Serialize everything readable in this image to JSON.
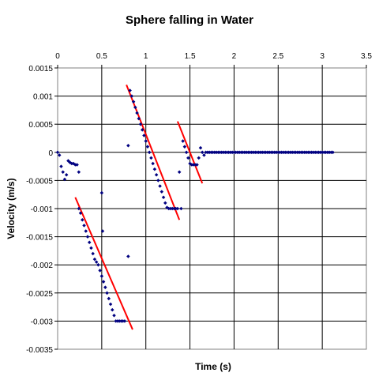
{
  "chart_data": {
    "type": "scatter",
    "title": "Sphere falling in Water",
    "xlabel": "Time (s)",
    "ylabel": "Velocity (m/s)",
    "xlim": [
      0,
      3.5
    ],
    "ylim": [
      -0.0035,
      0.0015
    ],
    "x_ticks": [
      "0",
      "0.5",
      "1",
      "1.5",
      "2",
      "2.5",
      "3",
      "3.5"
    ],
    "x_tick_values": [
      0,
      0.5,
      1,
      1.5,
      2,
      2.5,
      3,
      3.5
    ],
    "y_ticks": [
      "0.0015",
      "0.001",
      "0.0005",
      "0",
      "-0.0005",
      "-0.001",
      "-0.0015",
      "-0.002",
      "-0.0025",
      "-0.003",
      "-0.0035"
    ],
    "y_tick_values": [
      0.0015,
      0.001,
      0.0005,
      0,
      -0.0005,
      -0.001,
      -0.0015,
      -0.002,
      -0.0025,
      -0.003,
      -0.0035
    ],
    "x_axis_position": "top",
    "grid": true,
    "legend": "none",
    "point_color": "#000080",
    "fit_color": "#ff0000",
    "series": [
      {
        "x": [
          0.0,
          0.02,
          0.04,
          0.06,
          0.08,
          0.1,
          0.12,
          0.14,
          0.16,
          0.18,
          0.2,
          0.22,
          0.24,
          0.24,
          0.26,
          0.28,
          0.3,
          0.32,
          0.34,
          0.36,
          0.38,
          0.4,
          0.42,
          0.44,
          0.46,
          0.48,
          0.5,
          0.52,
          0.54,
          0.56,
          0.58,
          0.6,
          0.62,
          0.64,
          0.66,
          0.68,
          0.7,
          0.72,
          0.74,
          0.76,
          0.5,
          0.51,
          0.8,
          0.8,
          0.82,
          0.84,
          0.86,
          0.88,
          0.9,
          0.92,
          0.94,
          0.96,
          0.98,
          1.0,
          1.02,
          1.04,
          1.06,
          1.08,
          1.1,
          1.12,
          1.14,
          1.16,
          1.18,
          1.2,
          1.22,
          1.24,
          1.26,
          1.28,
          1.3,
          1.32,
          1.34,
          1.36,
          1.38,
          1.4,
          1.42,
          1.44,
          1.46,
          1.48,
          1.5,
          1.52,
          1.54,
          1.56,
          1.58,
          1.6,
          1.62,
          1.64,
          1.66,
          1.68,
          1.7,
          1.72,
          1.74,
          1.76,
          1.78,
          1.8,
          1.82,
          1.84,
          1.86,
          1.88,
          1.9,
          1.92,
          1.94,
          1.96,
          1.98,
          2.0,
          2.02,
          2.04,
          2.06,
          2.08,
          2.1,
          2.12,
          2.14,
          2.16,
          2.18,
          2.2,
          2.22,
          2.24,
          2.26,
          2.28,
          2.3,
          2.32,
          2.34,
          2.36,
          2.38,
          2.4,
          2.42,
          2.44,
          2.46,
          2.48,
          2.5,
          2.52,
          2.54,
          2.56,
          2.58,
          2.6,
          2.62,
          2.64,
          2.66,
          2.68,
          2.7,
          2.72,
          2.74,
          2.76,
          2.78,
          2.8,
          2.82,
          2.84,
          2.86,
          2.88,
          2.9,
          2.92,
          2.94,
          2.96,
          2.98,
          3.0,
          3.02,
          3.04,
          3.06,
          3.08,
          3.1,
          3.12
        ],
        "y": [
          0.0,
          -5e-05,
          -0.00025,
          -0.00035,
          -0.00048,
          -0.0004,
          -0.00015,
          -0.00018,
          -0.0002,
          -0.0002,
          -0.00022,
          -0.00022,
          -0.00035,
          -0.001,
          -0.00108,
          -0.0012,
          -0.0013,
          -0.0014,
          -0.0015,
          -0.0016,
          -0.0017,
          -0.0018,
          -0.0019,
          -0.00195,
          -0.002,
          -0.0021,
          -0.0022,
          -0.0023,
          -0.0024,
          -0.0025,
          -0.0026,
          -0.0027,
          -0.0028,
          -0.0029,
          -0.003,
          -0.003,
          -0.003,
          -0.003,
          -0.003,
          -0.003,
          -0.00072,
          -0.0014,
          -0.00185,
          0.00012,
          0.0011,
          0.001,
          0.0009,
          0.0008,
          0.0007,
          0.0006,
          0.0005,
          0.0004,
          0.0003,
          0.0002,
          0.0001,
          0.0,
          -0.0001,
          -0.0002,
          -0.0003,
          -0.0004,
          -0.0005,
          -0.0006,
          -0.0007,
          -0.0008,
          -0.0009,
          -0.00098,
          -0.001,
          -0.001,
          -0.001,
          -0.001,
          -0.001,
          -0.001,
          -0.00035,
          -0.001,
          0.0002,
          0.0001,
          0.0,
          -0.0001,
          -0.0002,
          -0.00022,
          -0.00022,
          -0.00022,
          -0.00022,
          -0.0001,
          8e-05,
          0.0,
          -5e-05,
          0.0,
          0.0,
          0,
          0,
          0,
          0,
          0,
          0,
          0,
          0,
          0,
          0,
          0,
          0,
          0,
          0,
          0,
          0,
          0,
          0,
          0,
          0,
          0,
          0,
          0,
          0,
          0,
          0,
          0,
          0,
          0,
          0,
          0,
          0,
          0,
          0,
          0,
          0,
          0,
          0,
          0,
          0,
          0,
          0,
          0,
          0,
          0,
          0,
          0,
          0,
          0,
          0,
          0,
          0,
          0,
          0,
          0,
          0,
          0,
          0,
          0,
          0,
          0,
          0,
          0,
          0,
          0,
          0,
          0,
          0,
          0,
          0,
          0
        ]
      }
    ],
    "fit_lines": [
      {
        "x": [
          0.2,
          0.85
        ],
        "y": [
          -0.0008,
          -0.00315
        ]
      },
      {
        "x": [
          0.78,
          1.38
        ],
        "y": [
          0.0012,
          -0.0012
        ]
      },
      {
        "x": [
          1.36,
          1.64
        ],
        "y": [
          0.00055,
          -0.00055
        ]
      }
    ]
  }
}
